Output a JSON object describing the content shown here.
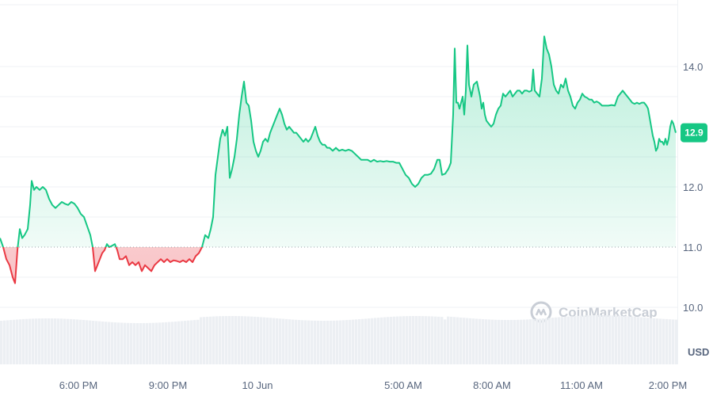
{
  "chart_data": {
    "type": "area",
    "baseline": 11.0,
    "ylim": [
      9.35,
      14.95
    ],
    "y_ticks": [
      10.0,
      11.0,
      12.0,
      14.0
    ],
    "y_tick_labels": [
      "10.0",
      "11.0",
      "12.0",
      "14.0"
    ],
    "unit_label": "USD",
    "x_range": [
      0,
      900
    ],
    "x_ticks": [
      {
        "t": 99,
        "label": "6:00 PM"
      },
      {
        "t": 212,
        "label": "9:00 PM"
      },
      {
        "t": 325,
        "label": "10 Jun"
      },
      {
        "t": 509,
        "label": "5:00 AM"
      },
      {
        "t": 621,
        "label": "8:00 AM"
      },
      {
        "t": 734,
        "label": "11:00 AM"
      },
      {
        "t": 843,
        "label": "2:00 PM"
      }
    ],
    "last_price": "12.9",
    "watermark": "CoinMarketCap",
    "colors": {
      "up": "#16c784",
      "down": "#ea3943",
      "badge": "#16c784",
      "grid": "#eff2f5",
      "baseline": "#9aa0a9",
      "volume": "#eceff3"
    },
    "series": [
      {
        "points": [
          [
            0,
            11.15
          ],
          [
            4,
            11.0
          ],
          [
            8,
            10.8
          ],
          [
            12,
            10.7
          ],
          [
            16,
            10.5
          ],
          [
            19,
            10.4
          ],
          [
            22,
            10.95
          ],
          [
            25,
            11.3
          ],
          [
            28,
            11.15
          ],
          [
            31,
            11.2
          ],
          [
            35,
            11.3
          ],
          [
            38,
            11.7
          ],
          [
            40,
            12.1
          ],
          [
            43,
            11.95
          ],
          [
            46,
            12.0
          ],
          [
            50,
            11.95
          ],
          [
            54,
            12.0
          ],
          [
            58,
            11.95
          ],
          [
            62,
            11.8
          ],
          [
            66,
            11.7
          ],
          [
            70,
            11.65
          ],
          [
            74,
            11.7
          ],
          [
            78,
            11.75
          ],
          [
            82,
            11.72
          ],
          [
            86,
            11.7
          ],
          [
            90,
            11.75
          ],
          [
            94,
            11.72
          ],
          [
            98,
            11.65
          ],
          [
            102,
            11.55
          ],
          [
            106,
            11.5
          ],
          [
            110,
            11.35
          ],
          [
            114,
            11.2
          ],
          [
            117,
            11.0
          ],
          [
            120,
            10.6
          ],
          [
            123,
            10.7
          ],
          [
            126,
            10.8
          ],
          [
            129,
            10.9
          ],
          [
            132,
            10.95
          ],
          [
            135,
            11.05
          ],
          [
            138,
            11.0
          ],
          [
            141,
            11.02
          ],
          [
            145,
            11.05
          ],
          [
            148,
            10.95
          ],
          [
            151,
            10.8
          ],
          [
            155,
            10.8
          ],
          [
            159,
            10.85
          ],
          [
            163,
            10.7
          ],
          [
            167,
            10.75
          ],
          [
            171,
            10.7
          ],
          [
            175,
            10.75
          ],
          [
            179,
            10.6
          ],
          [
            183,
            10.7
          ],
          [
            187,
            10.65
          ],
          [
            191,
            10.6
          ],
          [
            195,
            10.7
          ],
          [
            199,
            10.75
          ],
          [
            203,
            10.8
          ],
          [
            207,
            10.75
          ],
          [
            211,
            10.8
          ],
          [
            215,
            10.75
          ],
          [
            219,
            10.78
          ],
          [
            223,
            10.77
          ],
          [
            227,
            10.75
          ],
          [
            231,
            10.78
          ],
          [
            235,
            10.75
          ],
          [
            239,
            10.8
          ],
          [
            243,
            10.75
          ],
          [
            247,
            10.85
          ],
          [
            251,
            10.9
          ],
          [
            255,
            11.0
          ],
          [
            259,
            11.2
          ],
          [
            263,
            11.15
          ],
          [
            266,
            11.3
          ],
          [
            269,
            11.5
          ],
          [
            272,
            12.2
          ],
          [
            275,
            12.5
          ],
          [
            278,
            12.8
          ],
          [
            281,
            12.95
          ],
          [
            284,
            12.85
          ],
          [
            287,
            13.0
          ],
          [
            290,
            12.15
          ],
          [
            293,
            12.3
          ],
          [
            296,
            12.5
          ],
          [
            299,
            12.8
          ],
          [
            302,
            13.2
          ],
          [
            305,
            13.5
          ],
          [
            308,
            13.75
          ],
          [
            311,
            13.4
          ],
          [
            314,
            13.35
          ],
          [
            317,
            13.1
          ],
          [
            320,
            12.75
          ],
          [
            323,
            12.6
          ],
          [
            326,
            12.5
          ],
          [
            329,
            12.6
          ],
          [
            332,
            12.75
          ],
          [
            335,
            12.8
          ],
          [
            338,
            12.75
          ],
          [
            341,
            12.9
          ],
          [
            344,
            13.0
          ],
          [
            347,
            13.1
          ],
          [
            350,
            13.2
          ],
          [
            353,
            13.3
          ],
          [
            356,
            13.2
          ],
          [
            359,
            13.05
          ],
          [
            362,
            12.95
          ],
          [
            365,
            13.0
          ],
          [
            368,
            12.95
          ],
          [
            371,
            12.9
          ],
          [
            374,
            12.9
          ],
          [
            377,
            12.85
          ],
          [
            380,
            12.8
          ],
          [
            383,
            12.75
          ],
          [
            386,
            12.8
          ],
          [
            389,
            12.75
          ],
          [
            392,
            12.8
          ],
          [
            395,
            12.9
          ],
          [
            398,
            13.0
          ],
          [
            401,
            12.85
          ],
          [
            404,
            12.75
          ],
          [
            407,
            12.7
          ],
          [
            410,
            12.7
          ],
          [
            413,
            12.65
          ],
          [
            416,
            12.65
          ],
          [
            420,
            12.6
          ],
          [
            424,
            12.65
          ],
          [
            428,
            12.6
          ],
          [
            432,
            12.62
          ],
          [
            436,
            12.6
          ],
          [
            440,
            12.62
          ],
          [
            444,
            12.6
          ],
          [
            448,
            12.55
          ],
          [
            452,
            12.5
          ],
          [
            456,
            12.45
          ],
          [
            460,
            12.45
          ],
          [
            464,
            12.45
          ],
          [
            468,
            12.42
          ],
          [
            472,
            12.45
          ],
          [
            476,
            12.42
          ],
          [
            480,
            12.43
          ],
          [
            484,
            12.42
          ],
          [
            488,
            12.43
          ],
          [
            492,
            12.42
          ],
          [
            496,
            12.42
          ],
          [
            500,
            12.4
          ],
          [
            504,
            12.4
          ],
          [
            508,
            12.3
          ],
          [
            512,
            12.2
          ],
          [
            516,
            12.15
          ],
          [
            520,
            12.05
          ],
          [
            524,
            12.0
          ],
          [
            528,
            12.05
          ],
          [
            532,
            12.15
          ],
          [
            536,
            12.2
          ],
          [
            540,
            12.2
          ],
          [
            544,
            12.22
          ],
          [
            548,
            12.3
          ],
          [
            552,
            12.45
          ],
          [
            555,
            12.45
          ],
          [
            558,
            12.2
          ],
          [
            562,
            12.22
          ],
          [
            566,
            12.3
          ],
          [
            569,
            12.4
          ],
          [
            572,
            13.2
          ],
          [
            574,
            14.3
          ],
          [
            576,
            13.4
          ],
          [
            578,
            13.4
          ],
          [
            580,
            13.3
          ],
          [
            582,
            13.4
          ],
          [
            584,
            13.5
          ],
          [
            586,
            13.2
          ],
          [
            588,
            13.6
          ],
          [
            590,
            14.35
          ],
          [
            592,
            13.7
          ],
          [
            595,
            13.5
          ],
          [
            598,
            13.7
          ],
          [
            602,
            13.75
          ],
          [
            606,
            13.5
          ],
          [
            608,
            13.3
          ],
          [
            610,
            13.4
          ],
          [
            612,
            13.2
          ],
          [
            614,
            13.1
          ],
          [
            617,
            13.05
          ],
          [
            620,
            13.0
          ],
          [
            623,
            13.05
          ],
          [
            626,
            13.2
          ],
          [
            629,
            13.3
          ],
          [
            632,
            13.35
          ],
          [
            635,
            13.55
          ],
          [
            638,
            13.5
          ],
          [
            641,
            13.55
          ],
          [
            644,
            13.6
          ],
          [
            647,
            13.5
          ],
          [
            650,
            13.55
          ],
          [
            653,
            13.6
          ],
          [
            656,
            13.6
          ],
          [
            659,
            13.55
          ],
          [
            662,
            13.6
          ],
          [
            665,
            13.6
          ],
          [
            668,
            13.58
          ],
          [
            671,
            13.6
          ],
          [
            673,
            13.95
          ],
          [
            675,
            13.6
          ],
          [
            678,
            13.55
          ],
          [
            681,
            13.5
          ],
          [
            684,
            13.8
          ],
          [
            687,
            14.5
          ],
          [
            690,
            14.3
          ],
          [
            693,
            14.2
          ],
          [
            696,
            14.0
          ],
          [
            699,
            13.7
          ],
          [
            702,
            13.6
          ],
          [
            705,
            13.55
          ],
          [
            708,
            13.7
          ],
          [
            711,
            13.65
          ],
          [
            714,
            13.8
          ],
          [
            717,
            13.6
          ],
          [
            720,
            13.5
          ],
          [
            723,
            13.35
          ],
          [
            726,
            13.3
          ],
          [
            729,
            13.4
          ],
          [
            732,
            13.45
          ],
          [
            735,
            13.55
          ],
          [
            738,
            13.5
          ],
          [
            741,
            13.48
          ],
          [
            744,
            13.45
          ],
          [
            747,
            13.45
          ],
          [
            750,
            13.4
          ],
          [
            753,
            13.42
          ],
          [
            756,
            13.4
          ],
          [
            760,
            13.35
          ],
          [
            764,
            13.35
          ],
          [
            768,
            13.35
          ],
          [
            772,
            13.36
          ],
          [
            776,
            13.35
          ],
          [
            780,
            13.5
          ],
          [
            783,
            13.55
          ],
          [
            786,
            13.6
          ],
          [
            789,
            13.55
          ],
          [
            792,
            13.5
          ],
          [
            795,
            13.45
          ],
          [
            798,
            13.4
          ],
          [
            801,
            13.38
          ],
          [
            804,
            13.4
          ],
          [
            807,
            13.38
          ],
          [
            810,
            13.4
          ],
          [
            813,
            13.4
          ],
          [
            816,
            13.35
          ],
          [
            818,
            13.3
          ],
          [
            820,
            13.15
          ],
          [
            822,
            13.0
          ],
          [
            824,
            12.85
          ],
          [
            826,
            12.75
          ],
          [
            828,
            12.6
          ],
          [
            830,
            12.65
          ],
          [
            832,
            12.8
          ],
          [
            834,
            12.75
          ],
          [
            836,
            12.75
          ],
          [
            838,
            12.7
          ],
          [
            840,
            12.8
          ],
          [
            842,
            12.7
          ],
          [
            844,
            12.8
          ],
          [
            846,
            13.0
          ],
          [
            848,
            13.1
          ],
          [
            850,
            13.05
          ],
          [
            853,
            12.9
          ]
        ]
      }
    ]
  }
}
